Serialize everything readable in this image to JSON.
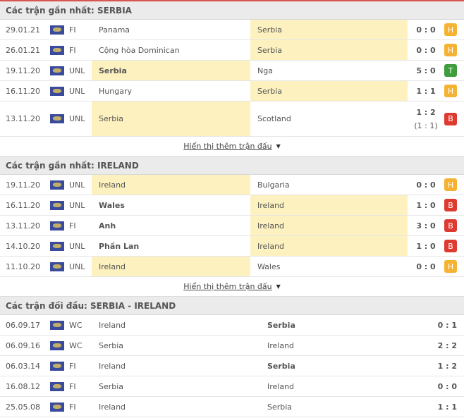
{
  "colors": {
    "H": "#f6b232",
    "T": "#3d9e3b",
    "B": "#dd3a30",
    "highlight": "#fcf1bf"
  },
  "sections": [
    {
      "title": "Các trận gần nhất: SERBIA",
      "more": "Hiển thị thêm trận đấu",
      "rows": [
        {
          "date": "29.01.21",
          "league": "FI",
          "home": "Panama",
          "away": "Serbia",
          "hl": "away",
          "bold": "",
          "score": "0 : 0",
          "result": "H"
        },
        {
          "date": "26.01.21",
          "league": "FI",
          "home": "Cộng hòa Dominican",
          "away": "Serbia",
          "hl": "away",
          "bold": "",
          "score": "0 : 0",
          "result": "H"
        },
        {
          "date": "19.11.20",
          "league": "UNL",
          "home": "Serbia",
          "away": "Nga",
          "hl": "home",
          "bold": "home",
          "score": "5 : 0",
          "result": "T"
        },
        {
          "date": "16.11.20",
          "league": "UNL",
          "home": "Hungary",
          "away": "Serbia",
          "hl": "away",
          "bold": "",
          "score": "1 : 1",
          "result": "H"
        },
        {
          "date": "13.11.20",
          "league": "UNL",
          "home": "Serbia",
          "away": "Scotland",
          "hl": "home",
          "bold": "",
          "score": "1 : 2",
          "sub": "(1 : 1)",
          "result": "B"
        }
      ]
    },
    {
      "title": "Các trận gần nhất: IRELAND",
      "more": "Hiển thị thêm trận đấu",
      "rows": [
        {
          "date": "19.11.20",
          "league": "UNL",
          "home": "Ireland",
          "away": "Bulgaria",
          "hl": "home",
          "bold": "",
          "score": "0 : 0",
          "result": "H"
        },
        {
          "date": "16.11.20",
          "league": "UNL",
          "home": "Wales",
          "away": "Ireland",
          "hl": "away",
          "bold": "home",
          "score": "1 : 0",
          "result": "B"
        },
        {
          "date": "13.11.20",
          "league": "FI",
          "home": "Anh",
          "away": "Ireland",
          "hl": "away",
          "bold": "home",
          "score": "3 : 0",
          "result": "B"
        },
        {
          "date": "14.10.20",
          "league": "UNL",
          "home": "Phần Lan",
          "away": "Ireland",
          "hl": "away",
          "bold": "home",
          "score": "1 : 0",
          "result": "B"
        },
        {
          "date": "11.10.20",
          "league": "UNL",
          "home": "Ireland",
          "away": "Wales",
          "hl": "home",
          "bold": "",
          "score": "0 : 0",
          "result": "H"
        }
      ]
    },
    {
      "title": "Các trận đối đầu: SERBIA - IRELAND",
      "h2h": true,
      "rows": [
        {
          "date": "06.09.17",
          "league": "WC",
          "home": "Ireland",
          "away": "Serbia",
          "hl": "",
          "bold": "away",
          "score": "0 : 1"
        },
        {
          "date": "06.09.16",
          "league": "WC",
          "home": "Serbia",
          "away": "Ireland",
          "hl": "",
          "bold": "",
          "score": "2 : 2"
        },
        {
          "date": "06.03.14",
          "league": "FI",
          "home": "Ireland",
          "away": "Serbia",
          "hl": "",
          "bold": "away",
          "score": "1 : 2"
        },
        {
          "date": "16.08.12",
          "league": "FI",
          "home": "Serbia",
          "away": "Ireland",
          "hl": "",
          "bold": "",
          "score": "0 : 0"
        },
        {
          "date": "25.05.08",
          "league": "FI",
          "home": "Ireland",
          "away": "Serbia",
          "hl": "",
          "bold": "",
          "score": "1 : 1"
        }
      ]
    }
  ]
}
